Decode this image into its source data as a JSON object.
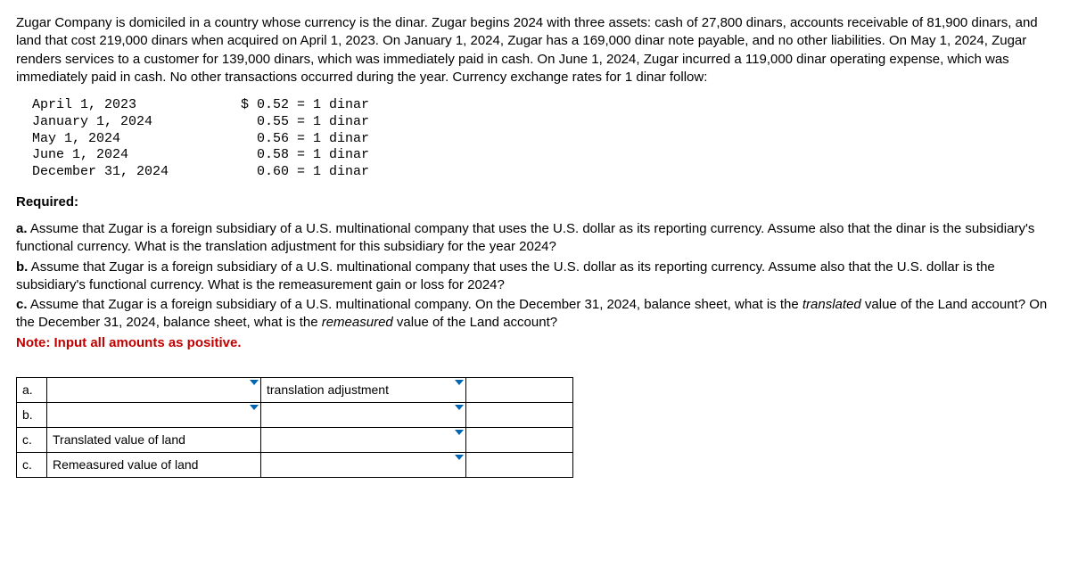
{
  "intro": "Zugar Company is domiciled in a country whose currency is the dinar. Zugar begins 2024 with three assets: cash of 27,800 dinars, accounts receivable of 81,900 dinars, and land that cost 219,000 dinars when acquired on April 1, 2023. On January 1, 2024, Zugar has a 169,000 dinar note payable, and no other liabilities. On May 1, 2024, Zugar renders services to a customer for 139,000 dinars, which was immediately paid in cash. On June 1, 2024, Zugar incurred a 119,000 dinar operating expense, which was immediately paid in cash. No other transactions occurred during the year. Currency exchange rates for 1 dinar follow:",
  "rates": "April 1, 2023             $ 0.52 = 1 dinar\nJanuary 1, 2024             0.55 = 1 dinar\nMay 1, 2024                 0.56 = 1 dinar\nJune 1, 2024                0.58 = 1 dinar\nDecember 31, 2024           0.60 = 1 dinar",
  "required_hdr": "Required:",
  "req": {
    "a_lbl": "a.",
    "a_txt": " Assume that Zugar is a foreign subsidiary of a U.S. multinational company that uses the U.S. dollar as its reporting currency. Assume also that the dinar is the subsidiary's functional currency. What is the translation adjustment for this subsidiary for the year 2024?",
    "b_lbl": "b.",
    "b_txt": " Assume that Zugar is a foreign subsidiary of a U.S. multinational company that uses the U.S. dollar as its reporting currency. Assume also that the U.S. dollar is the subsidiary's functional currency. What is the remeasurement gain or loss for 2024?",
    "c_lbl": "c.",
    "c_txt1": " Assume that Zugar is a foreign subsidiary of a U.S. multinational company. On the December 31, 2024, balance sheet, what is the ",
    "c_it1": "translated",
    "c_txt2": " value of the Land account? On the December 31, 2024, balance sheet, what is the ",
    "c_it2": "remeasured",
    "c_txt3": " value of the Land account?"
  },
  "note": "Note: Input all amounts as positive.",
  "table": {
    "rows": [
      {
        "label": "a.",
        "desc": "",
        "desc_dd": true,
        "type": "translation adjustment",
        "type_dd": true,
        "amt": ""
      },
      {
        "label": "b.",
        "desc": "",
        "desc_dd": true,
        "type": "",
        "type_dd": true,
        "amt": ""
      },
      {
        "label": "c.",
        "desc": "Translated value of land",
        "desc_dd": false,
        "type": "",
        "type_dd": false,
        "amt": ""
      },
      {
        "label": "c.",
        "desc": "Remeasured value of land",
        "desc_dd": false,
        "type": "",
        "type_dd": false,
        "amt": ""
      }
    ]
  }
}
